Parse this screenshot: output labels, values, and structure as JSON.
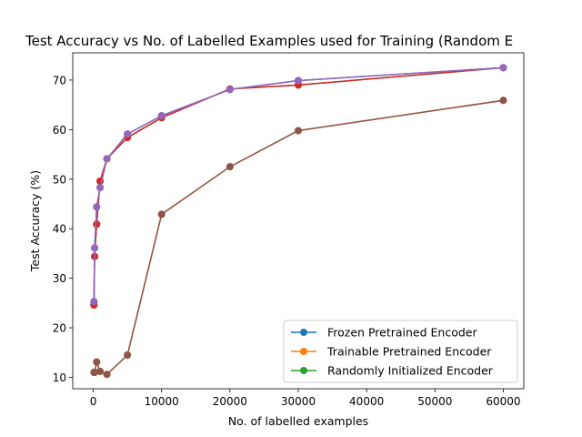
{
  "chart_data": {
    "type": "line",
    "title": "Test Accuracy vs No. of Labelled Examples used for Training (Random E",
    "xlabel": "No. of labelled examples",
    "ylabel": "Test Accuracy (%)",
    "xlim": [
      -3000,
      63000
    ],
    "ylim": [
      7.7,
      75.5
    ],
    "xticks": [
      0,
      10000,
      20000,
      30000,
      40000,
      50000,
      60000
    ],
    "yticks": [
      10,
      20,
      30,
      40,
      50,
      60,
      70
    ],
    "grid": false,
    "legend_position": "lower-right",
    "series": [
      {
        "name": "Frozen Pretrained Encoder",
        "color": "#1f77b4",
        "in_legend": true,
        "x": [
          100,
          200,
          500,
          1000,
          2000,
          5000,
          10000,
          20000,
          30000,
          60000
        ],
        "y": [
          25.3,
          36.1,
          44.4,
          48.3,
          54.1,
          59.1,
          62.8,
          68.1,
          69.9,
          72.5
        ]
      },
      {
        "name": "Trainable Pretrained Encoder",
        "color": "#ff7f0e",
        "in_legend": true,
        "x": [
          100,
          200,
          500,
          1000,
          2000,
          5000,
          10000,
          20000,
          30000,
          60000
        ],
        "y": [
          11.0,
          11.0,
          13.1,
          11.2,
          10.6,
          14.5,
          42.9,
          52.5,
          59.8,
          65.9
        ]
      },
      {
        "name": "Randomly Initialized Encoder",
        "color": "#2ca02c",
        "in_legend": true,
        "x": [
          100,
          200,
          500,
          1000,
          2000,
          5000,
          10000,
          20000,
          30000,
          60000
        ],
        "y": [
          24.6,
          34.4,
          40.9,
          49.6,
          54.1,
          58.4,
          62.4,
          68.2,
          69.0,
          72.5
        ]
      },
      {
        "name": "",
        "color": "#d62728",
        "in_legend": false,
        "x": [
          100,
          200,
          500,
          1000,
          2000,
          5000,
          10000,
          20000,
          30000,
          60000
        ],
        "y": [
          24.6,
          34.4,
          40.9,
          49.6,
          54.1,
          58.4,
          62.4,
          68.2,
          69.0,
          72.5
        ]
      },
      {
        "name": "",
        "color": "#9467bd",
        "in_legend": false,
        "x": [
          100,
          200,
          500,
          1000,
          2000,
          5000,
          10000,
          20000,
          30000,
          60000
        ],
        "y": [
          25.3,
          36.1,
          44.4,
          48.3,
          54.1,
          59.1,
          62.8,
          68.1,
          69.9,
          72.5
        ]
      },
      {
        "name": "",
        "color": "#8c564b",
        "in_legend": false,
        "x": [
          100,
          200,
          500,
          1000,
          2000,
          5000,
          10000,
          20000,
          30000,
          60000
        ],
        "y": [
          11.0,
          11.0,
          13.1,
          11.2,
          10.6,
          14.5,
          42.9,
          52.5,
          59.8,
          65.9
        ]
      }
    ]
  }
}
